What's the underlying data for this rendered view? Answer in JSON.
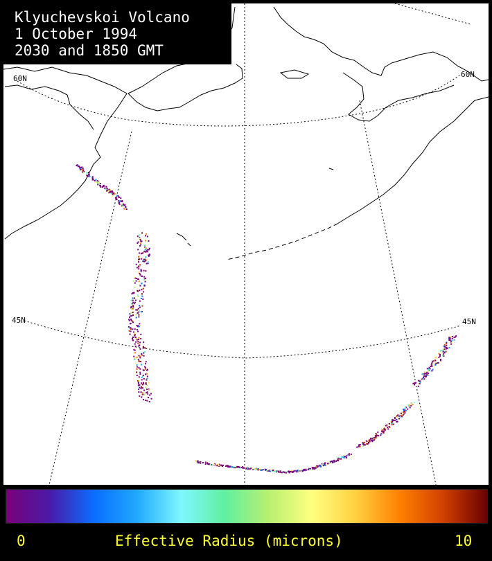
{
  "title": {
    "line1": "Klyuchevskoi Volcano",
    "line2": "1 October 1994",
    "line3": "2030 and 1850 GMT"
  },
  "grid_labels": {
    "lat60_west": "60N",
    "lat60_east": "60N",
    "lat45_west": "45N",
    "lat45_east": "45N"
  },
  "colorbar": {
    "min_label": "0",
    "max_label": "10",
    "title": "Effective Radius (microns)",
    "min_value": 0,
    "max_value": 10,
    "label_color": "#ffff33",
    "stops": [
      "#7a007a",
      "#4a1aa8",
      "#0a6cff",
      "#20aaff",
      "#7ff7ff",
      "#5ff0a0",
      "#b8f070",
      "#ffff80",
      "#ffd040",
      "#ff8000",
      "#d04000",
      "#6a0000"
    ]
  },
  "colors": {
    "background": "#000000",
    "map_background": "#ffffff",
    "coastline": "#000000"
  }
}
